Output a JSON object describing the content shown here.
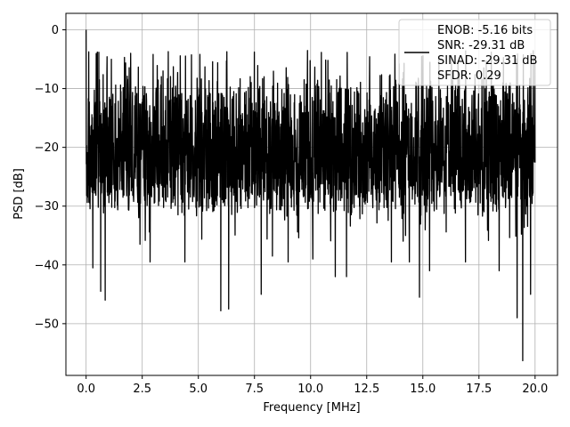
{
  "chart_data": {
    "type": "line",
    "title": "",
    "xlabel": "Frequency [MHz]",
    "ylabel": "PSD [dB]",
    "xlim": [
      -0.9,
      21.0
    ],
    "ylim": [
      -58.8,
      2.8
    ],
    "xticks": [
      0.0,
      2.5,
      5.0,
      7.5,
      10.0,
      12.5,
      15.0,
      17.5,
      20.0
    ],
    "xtick_labels": [
      "0.0",
      "2.5",
      "5.0",
      "7.5",
      "10.0",
      "12.5",
      "15.0",
      "17.5",
      "20.0"
    ],
    "yticks": [
      0,
      -10,
      -20,
      -30,
      -40,
      -50
    ],
    "ytick_labels": [
      "0",
      "−10",
      "−20",
      "−30",
      "−40",
      "−50"
    ],
    "grid": true,
    "legend_position": "top-right",
    "series": [
      {
        "color": "#000000",
        "x_range": [
          0.0,
          20.0
        ],
        "description_of_values": "dense noise-like PSD trace fluctuating mostly between about -5 dB and -30 dB",
        "peak": {
          "x": 0.0,
          "y": 0.0
        },
        "notable_minima": [
          {
            "x": 0.3,
            "y": -40.5
          },
          {
            "x": 0.65,
            "y": -44.5
          },
          {
            "x": 0.85,
            "y": -46.0
          },
          {
            "x": 2.4,
            "y": -36.5
          },
          {
            "x": 2.85,
            "y": -39.5
          },
          {
            "x": 4.4,
            "y": -39.5
          },
          {
            "x": 6.0,
            "y": -47.8
          },
          {
            "x": 6.35,
            "y": -47.5
          },
          {
            "x": 7.8,
            "y": -45.0
          },
          {
            "x": 8.3,
            "y": -38.5
          },
          {
            "x": 9.0,
            "y": -39.5
          },
          {
            "x": 10.1,
            "y": -39.0
          },
          {
            "x": 11.1,
            "y": -42.0
          },
          {
            "x": 11.6,
            "y": -42.0
          },
          {
            "x": 13.6,
            "y": -39.5
          },
          {
            "x": 14.4,
            "y": -39.5
          },
          {
            "x": 14.85,
            "y": -45.5
          },
          {
            "x": 15.3,
            "y": -41.0
          },
          {
            "x": 16.9,
            "y": -39.5
          },
          {
            "x": 18.4,
            "y": -41.0
          },
          {
            "x": 19.2,
            "y": -49.0
          },
          {
            "x": 19.45,
            "y": -56.3
          },
          {
            "x": 19.8,
            "y": -45.0
          }
        ]
      }
    ],
    "legend": {
      "lines": [
        "ENOB: -5.16 bits",
        "SNR: -29.31 dB",
        "SINAD: -29.31 dB",
        "SFDR: 0.29"
      ]
    }
  }
}
